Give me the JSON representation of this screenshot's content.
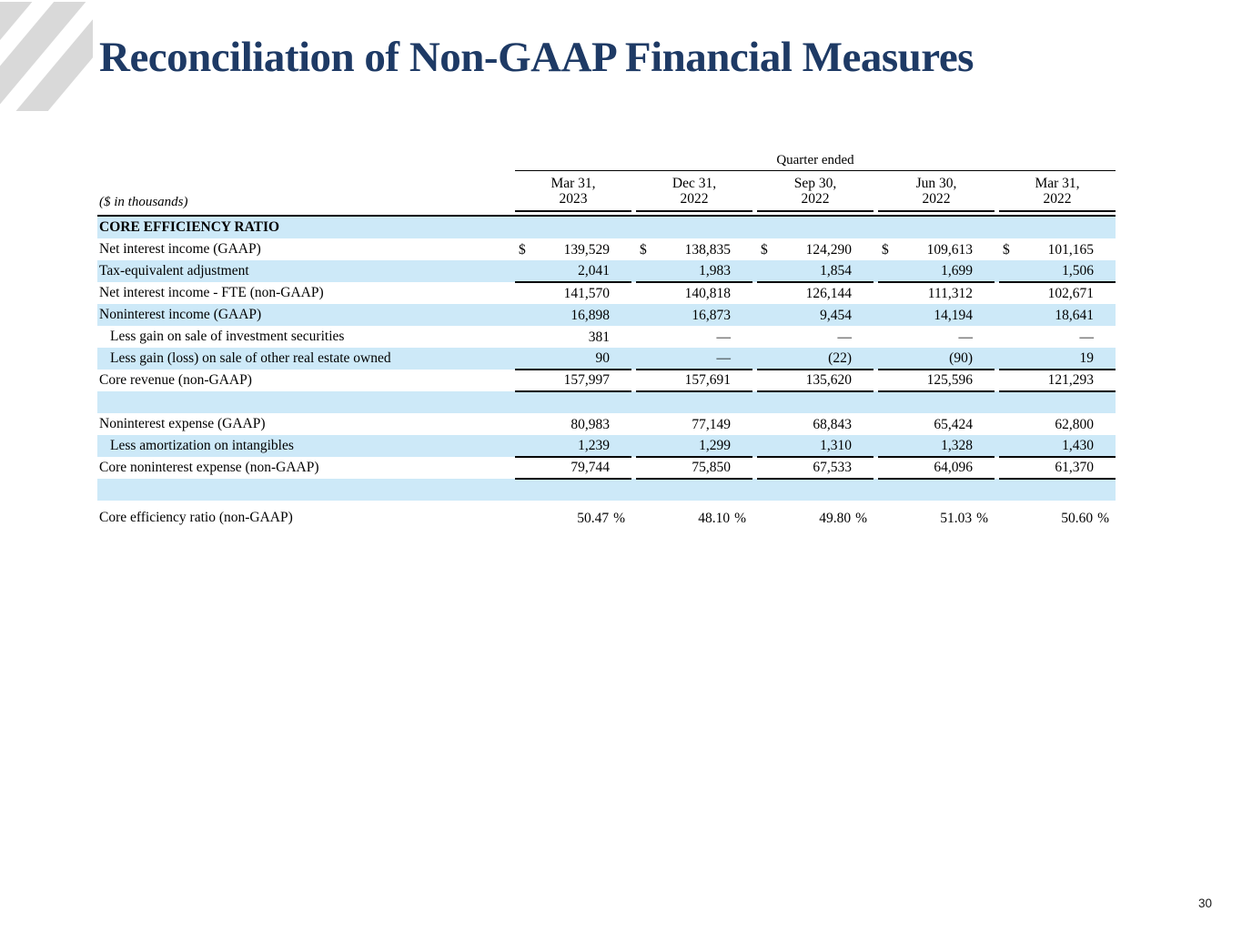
{
  "title": "Reconciliation of Non-GAAP Financial Measures",
  "page_number": "30",
  "colors": {
    "title_navy": "#1e3a65",
    "row_shade_blue": "#cde9f8",
    "logo_gray": "#d9d9d9",
    "rule_black": "#000000"
  },
  "table": {
    "group_header": "Quarter ended",
    "units_note": "($ in thousands)",
    "columns": [
      "Mar 31,\n2023",
      "Dec 31,\n2022",
      "Sep 30,\n2022",
      "Jun 30,\n2022",
      "Mar 31,\n2022"
    ],
    "rows": [
      {
        "label": "CORE EFFICIENCY RATIO",
        "values": [
          "",
          "",
          "",
          "",
          ""
        ],
        "flags": [
          "section"
        ]
      },
      {
        "label": "Net interest income (GAAP)",
        "prefix": "$",
        "values": [
          "139,529",
          "138,835",
          "124,290",
          "109,613",
          "101,165"
        ],
        "flags": []
      },
      {
        "label": "Tax-equivalent adjustment",
        "values": [
          "2,041",
          "1,983",
          "1,854",
          "1,699",
          "1,506"
        ],
        "flags": [
          "rule"
        ]
      },
      {
        "label": "Net interest income - FTE (non-GAAP)",
        "values": [
          "141,570",
          "140,818",
          "126,144",
          "111,312",
          "102,671"
        ],
        "flags": []
      },
      {
        "label": "Noninterest income (GAAP)",
        "values": [
          "16,898",
          "16,873",
          "9,454",
          "14,194",
          "18,641"
        ],
        "flags": []
      },
      {
        "label": "Less gain on sale of investment securities",
        "values": [
          "381",
          "—",
          "—",
          "—",
          "—"
        ],
        "flags": [
          "indent"
        ]
      },
      {
        "label": "Less gain (loss) on sale of other real estate owned",
        "values": [
          "90",
          "—",
          "(22)",
          "(90)",
          "19"
        ],
        "flags": [
          "indent",
          "rule"
        ]
      },
      {
        "label": "Core revenue (non-GAAP)",
        "values": [
          "157,997",
          "157,691",
          "135,620",
          "125,596",
          "121,293"
        ],
        "flags": [
          "rule"
        ]
      },
      {
        "label": "",
        "values": [
          "",
          "",
          "",
          "",
          ""
        ],
        "flags": [
          "spacer"
        ]
      },
      {
        "label": "Noninterest expense (GAAP)",
        "values": [
          "80,983",
          "77,149",
          "68,843",
          "65,424",
          "62,800"
        ],
        "flags": []
      },
      {
        "label": "Less amortization on intangibles",
        "values": [
          "1,239",
          "1,299",
          "1,310",
          "1,328",
          "1,430"
        ],
        "flags": [
          "indent",
          "rule"
        ]
      },
      {
        "label": "Core noninterest expense (non-GAAP)",
        "values": [
          "79,744",
          "75,850",
          "67,533",
          "64,096",
          "61,370"
        ],
        "flags": [
          "rule"
        ]
      },
      {
        "label": "",
        "values": [
          "",
          "",
          "",
          "",
          ""
        ],
        "flags": [
          "spacer"
        ]
      },
      {
        "label": "Core efficiency ratio (non-GAAP)",
        "suffix": "%",
        "values": [
          "50.47",
          "48.10",
          "49.80",
          "51.03",
          "50.60"
        ],
        "flags": [
          "pct"
        ]
      }
    ]
  }
}
